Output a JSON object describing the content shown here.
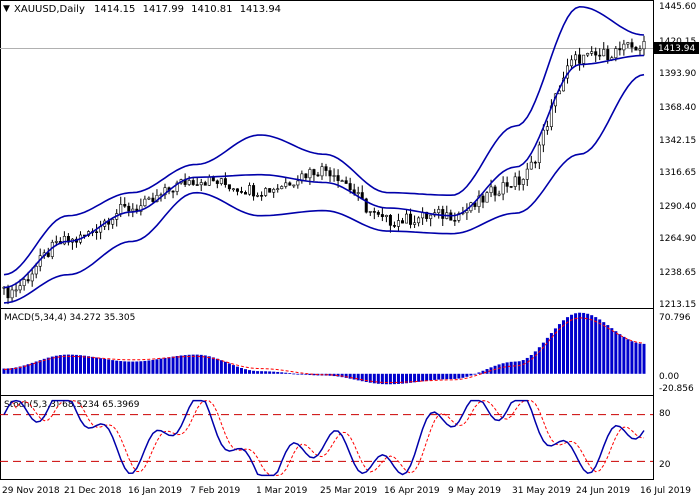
{
  "header": {
    "symbol": "XAUUSD,Daily",
    "open": "1414.15",
    "high": "1417.99",
    "low": "1410.81",
    "close": "1413.94"
  },
  "price_panel": {
    "current_price_label": "1413.94",
    "y_ticks": [
      "1445.60",
      "1420.15",
      "1393.90",
      "1368.40",
      "1342.15",
      "1316.65",
      "1290.40",
      "1264.90",
      "1238.65",
      "1213.15"
    ]
  },
  "macd_panel": {
    "title": "MACD(5,34,4) 34.272 35.305",
    "y_ticks": [
      "70.796",
      "0.00",
      "-20.856"
    ]
  },
  "stoch_panel": {
    "title": "Stoch(5,3,3) 68.5234 65.3969",
    "y_ticks": [
      "80",
      "20"
    ],
    "levels": [
      80,
      20
    ]
  },
  "x_axis": {
    "labels": [
      "29 Nov 2018",
      "21 Dec 2018",
      "16 Jan 2019",
      "7 Feb 2019",
      "1 Mar 2019",
      "25 Mar 2019",
      "16 Apr 2019",
      "9 May 2019",
      "31 May 2019",
      "24 Jun 2019",
      "16 Jul 2019"
    ]
  },
  "colors": {
    "price": "#000000",
    "bollinger": "#0000aa",
    "macd_hist": "#0000cc",
    "macd_signal": "#ff0000",
    "stoch_main": "#0000aa",
    "stoch_signal": "#ff0000",
    "level_line": "#cc0000",
    "current_price_bg": "#000000"
  },
  "chart_data": [
    {
      "type": "candlestick",
      "title": "XAUUSD,Daily",
      "ylim": [
        1213.15,
        1445.6
      ],
      "x": [
        "29 Nov 2018",
        "21 Dec 2018",
        "16 Jan 2019",
        "7 Feb 2019",
        "1 Mar 2019",
        "25 Mar 2019",
        "16 Apr 2019",
        "9 May 2019",
        "31 May 2019",
        "24 Jun 2019",
        "16 Jul 2019"
      ],
      "close": [
        1222,
        1262,
        1288,
        1310,
        1302,
        1318,
        1278,
        1283,
        1308,
        1405,
        1413.94
      ],
      "bollinger_upper": [
        1236,
        1282,
        1300,
        1322,
        1345,
        1330,
        1300,
        1298,
        1352,
        1445,
        1423
      ],
      "bollinger_middle": [
        1226,
        1262,
        1285,
        1312,
        1314,
        1308,
        1288,
        1282,
        1320,
        1400,
        1407
      ],
      "bollinger_lower": [
        1214,
        1236,
        1262,
        1300,
        1282,
        1286,
        1270,
        1268,
        1284,
        1330,
        1392
      ]
    },
    {
      "type": "bar",
      "title": "MACD(5,34,4) 34.272 35.305",
      "ylim": [
        -20.856,
        70.796
      ],
      "categories": [
        "29 Nov 2018",
        "21 Dec 2018",
        "16 Jan 2019",
        "7 Feb 2019",
        "1 Mar 2019",
        "25 Mar 2019",
        "16 Apr 2019",
        "9 May 2019",
        "31 May 2019",
        "24 Jun 2019",
        "16 Jul 2019"
      ],
      "series": [
        {
          "name": "MACD",
          "values": [
            6,
            22,
            14,
            22,
            3,
            -2,
            -12,
            -6,
            14,
            70,
            34.272
          ]
        },
        {
          "name": "Signal",
          "values": [
            5,
            20,
            16,
            20,
            6,
            -1,
            -10,
            -7,
            9,
            64,
            35.305
          ]
        }
      ]
    },
    {
      "type": "line",
      "title": "Stoch(5,3,3) 68.5234 65.3969",
      "ylim": [
        0,
        100
      ],
      "x": [
        "29 Nov 2018",
        "21 Dec 2018",
        "16 Jan 2019",
        "7 Feb 2019",
        "1 Mar 2019",
        "25 Mar 2019",
        "16 Apr 2019",
        "9 May 2019",
        "31 May 2019",
        "24 Jun 2019",
        "16 Jul 2019"
      ],
      "series": [
        {
          "name": "Main",
          "values": [
            80,
            95,
            22,
            88,
            5,
            45,
            10,
            82,
            92,
            20,
            68.5234
          ]
        },
        {
          "name": "Signal",
          "values": [
            72,
            90,
            30,
            82,
            12,
            40,
            16,
            76,
            86,
            30,
            65.3969
          ]
        }
      ],
      "levels": [
        80,
        20
      ]
    }
  ]
}
